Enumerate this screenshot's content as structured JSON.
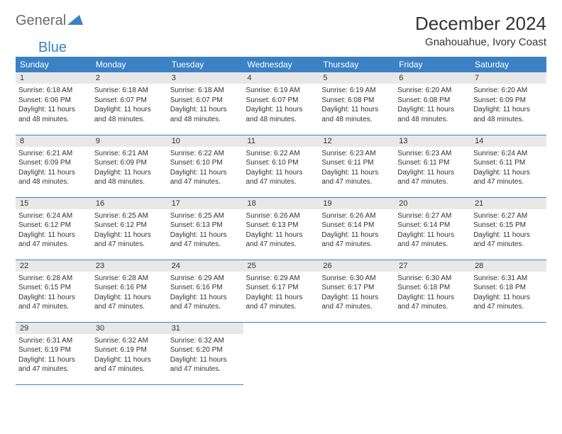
{
  "logo": {
    "general": "General",
    "blue": "Blue"
  },
  "title": "December 2024",
  "location": "Gnahouahue, Ivory Coast",
  "colors": {
    "header_bg": "#3b82c4",
    "header_text": "#ffffff",
    "daynum_bg": "#e8e8e8",
    "text": "#333333",
    "logo_general": "#6b6b6b",
    "logo_blue": "#3b82c4"
  },
  "weekdays": [
    "Sunday",
    "Monday",
    "Tuesday",
    "Wednesday",
    "Thursday",
    "Friday",
    "Saturday"
  ],
  "weeks": [
    [
      {
        "n": "1",
        "sr": "6:18 AM",
        "ss": "6:06 PM",
        "dl": "11 hours and 48 minutes."
      },
      {
        "n": "2",
        "sr": "6:18 AM",
        "ss": "6:07 PM",
        "dl": "11 hours and 48 minutes."
      },
      {
        "n": "3",
        "sr": "6:18 AM",
        "ss": "6:07 PM",
        "dl": "11 hours and 48 minutes."
      },
      {
        "n": "4",
        "sr": "6:19 AM",
        "ss": "6:07 PM",
        "dl": "11 hours and 48 minutes."
      },
      {
        "n": "5",
        "sr": "6:19 AM",
        "ss": "6:08 PM",
        "dl": "11 hours and 48 minutes."
      },
      {
        "n": "6",
        "sr": "6:20 AM",
        "ss": "6:08 PM",
        "dl": "11 hours and 48 minutes."
      },
      {
        "n": "7",
        "sr": "6:20 AM",
        "ss": "6:09 PM",
        "dl": "11 hours and 48 minutes."
      }
    ],
    [
      {
        "n": "8",
        "sr": "6:21 AM",
        "ss": "6:09 PM",
        "dl": "11 hours and 48 minutes."
      },
      {
        "n": "9",
        "sr": "6:21 AM",
        "ss": "6:09 PM",
        "dl": "11 hours and 48 minutes."
      },
      {
        "n": "10",
        "sr": "6:22 AM",
        "ss": "6:10 PM",
        "dl": "11 hours and 47 minutes."
      },
      {
        "n": "11",
        "sr": "6:22 AM",
        "ss": "6:10 PM",
        "dl": "11 hours and 47 minutes."
      },
      {
        "n": "12",
        "sr": "6:23 AM",
        "ss": "6:11 PM",
        "dl": "11 hours and 47 minutes."
      },
      {
        "n": "13",
        "sr": "6:23 AM",
        "ss": "6:11 PM",
        "dl": "11 hours and 47 minutes."
      },
      {
        "n": "14",
        "sr": "6:24 AM",
        "ss": "6:11 PM",
        "dl": "11 hours and 47 minutes."
      }
    ],
    [
      {
        "n": "15",
        "sr": "6:24 AM",
        "ss": "6:12 PM",
        "dl": "11 hours and 47 minutes."
      },
      {
        "n": "16",
        "sr": "6:25 AM",
        "ss": "6:12 PM",
        "dl": "11 hours and 47 minutes."
      },
      {
        "n": "17",
        "sr": "6:25 AM",
        "ss": "6:13 PM",
        "dl": "11 hours and 47 minutes."
      },
      {
        "n": "18",
        "sr": "6:26 AM",
        "ss": "6:13 PM",
        "dl": "11 hours and 47 minutes."
      },
      {
        "n": "19",
        "sr": "6:26 AM",
        "ss": "6:14 PM",
        "dl": "11 hours and 47 minutes."
      },
      {
        "n": "20",
        "sr": "6:27 AM",
        "ss": "6:14 PM",
        "dl": "11 hours and 47 minutes."
      },
      {
        "n": "21",
        "sr": "6:27 AM",
        "ss": "6:15 PM",
        "dl": "11 hours and 47 minutes."
      }
    ],
    [
      {
        "n": "22",
        "sr": "6:28 AM",
        "ss": "6:15 PM",
        "dl": "11 hours and 47 minutes."
      },
      {
        "n": "23",
        "sr": "6:28 AM",
        "ss": "6:16 PM",
        "dl": "11 hours and 47 minutes."
      },
      {
        "n": "24",
        "sr": "6:29 AM",
        "ss": "6:16 PM",
        "dl": "11 hours and 47 minutes."
      },
      {
        "n": "25",
        "sr": "6:29 AM",
        "ss": "6:17 PM",
        "dl": "11 hours and 47 minutes."
      },
      {
        "n": "26",
        "sr": "6:30 AM",
        "ss": "6:17 PM",
        "dl": "11 hours and 47 minutes."
      },
      {
        "n": "27",
        "sr": "6:30 AM",
        "ss": "6:18 PM",
        "dl": "11 hours and 47 minutes."
      },
      {
        "n": "28",
        "sr": "6:31 AM",
        "ss": "6:18 PM",
        "dl": "11 hours and 47 minutes."
      }
    ],
    [
      {
        "n": "29",
        "sr": "6:31 AM",
        "ss": "6:19 PM",
        "dl": "11 hours and 47 minutes."
      },
      {
        "n": "30",
        "sr": "6:32 AM",
        "ss": "6:19 PM",
        "dl": "11 hours and 47 minutes."
      },
      {
        "n": "31",
        "sr": "6:32 AM",
        "ss": "6:20 PM",
        "dl": "11 hours and 47 minutes."
      },
      null,
      null,
      null,
      null
    ]
  ],
  "labels": {
    "sunrise": "Sunrise:",
    "sunset": "Sunset:",
    "daylight": "Daylight:"
  }
}
